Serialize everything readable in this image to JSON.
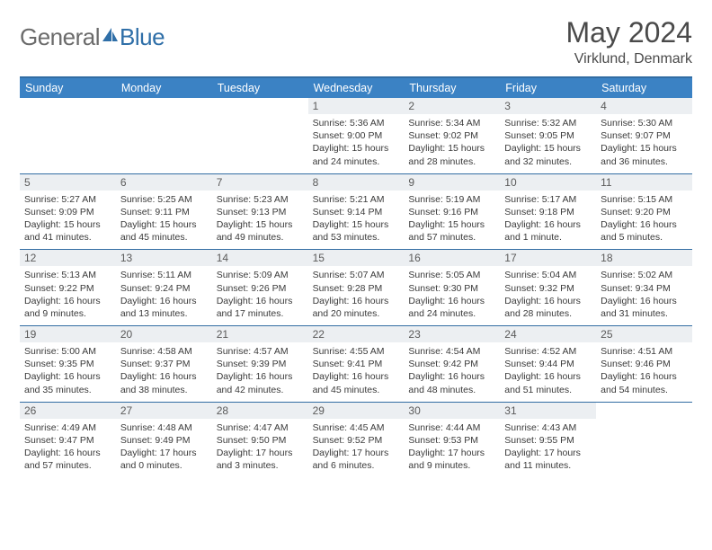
{
  "brand": {
    "part1": "General",
    "part2": "Blue"
  },
  "title": "May 2024",
  "location": "Virklund, Denmark",
  "colors": {
    "header_bar": "#3b82c4",
    "rule": "#326da3",
    "daynum_bg": "#eceff2",
    "text": "#3a3a3a",
    "logo_gray": "#6b6b6b",
    "logo_blue": "#2f6fa8"
  },
  "weekdays": [
    "Sunday",
    "Monday",
    "Tuesday",
    "Wednesday",
    "Thursday",
    "Friday",
    "Saturday"
  ],
  "weeks": [
    {
      "nums": [
        "",
        "",
        "",
        "1",
        "2",
        "3",
        "4"
      ],
      "cells": [
        null,
        null,
        null,
        {
          "sunrise": "Sunrise: 5:36 AM",
          "sunset": "Sunset: 9:00 PM",
          "day": "Daylight: 15 hours and 24 minutes."
        },
        {
          "sunrise": "Sunrise: 5:34 AM",
          "sunset": "Sunset: 9:02 PM",
          "day": "Daylight: 15 hours and 28 minutes."
        },
        {
          "sunrise": "Sunrise: 5:32 AM",
          "sunset": "Sunset: 9:05 PM",
          "day": "Daylight: 15 hours and 32 minutes."
        },
        {
          "sunrise": "Sunrise: 5:30 AM",
          "sunset": "Sunset: 9:07 PM",
          "day": "Daylight: 15 hours and 36 minutes."
        }
      ]
    },
    {
      "nums": [
        "5",
        "6",
        "7",
        "8",
        "9",
        "10",
        "11"
      ],
      "cells": [
        {
          "sunrise": "Sunrise: 5:27 AM",
          "sunset": "Sunset: 9:09 PM",
          "day": "Daylight: 15 hours and 41 minutes."
        },
        {
          "sunrise": "Sunrise: 5:25 AM",
          "sunset": "Sunset: 9:11 PM",
          "day": "Daylight: 15 hours and 45 minutes."
        },
        {
          "sunrise": "Sunrise: 5:23 AM",
          "sunset": "Sunset: 9:13 PM",
          "day": "Daylight: 15 hours and 49 minutes."
        },
        {
          "sunrise": "Sunrise: 5:21 AM",
          "sunset": "Sunset: 9:14 PM",
          "day": "Daylight: 15 hours and 53 minutes."
        },
        {
          "sunrise": "Sunrise: 5:19 AM",
          "sunset": "Sunset: 9:16 PM",
          "day": "Daylight: 15 hours and 57 minutes."
        },
        {
          "sunrise": "Sunrise: 5:17 AM",
          "sunset": "Sunset: 9:18 PM",
          "day": "Daylight: 16 hours and 1 minute."
        },
        {
          "sunrise": "Sunrise: 5:15 AM",
          "sunset": "Sunset: 9:20 PM",
          "day": "Daylight: 16 hours and 5 minutes."
        }
      ]
    },
    {
      "nums": [
        "12",
        "13",
        "14",
        "15",
        "16",
        "17",
        "18"
      ],
      "cells": [
        {
          "sunrise": "Sunrise: 5:13 AM",
          "sunset": "Sunset: 9:22 PM",
          "day": "Daylight: 16 hours and 9 minutes."
        },
        {
          "sunrise": "Sunrise: 5:11 AM",
          "sunset": "Sunset: 9:24 PM",
          "day": "Daylight: 16 hours and 13 minutes."
        },
        {
          "sunrise": "Sunrise: 5:09 AM",
          "sunset": "Sunset: 9:26 PM",
          "day": "Daylight: 16 hours and 17 minutes."
        },
        {
          "sunrise": "Sunrise: 5:07 AM",
          "sunset": "Sunset: 9:28 PM",
          "day": "Daylight: 16 hours and 20 minutes."
        },
        {
          "sunrise": "Sunrise: 5:05 AM",
          "sunset": "Sunset: 9:30 PM",
          "day": "Daylight: 16 hours and 24 minutes."
        },
        {
          "sunrise": "Sunrise: 5:04 AM",
          "sunset": "Sunset: 9:32 PM",
          "day": "Daylight: 16 hours and 28 minutes."
        },
        {
          "sunrise": "Sunrise: 5:02 AM",
          "sunset": "Sunset: 9:34 PM",
          "day": "Daylight: 16 hours and 31 minutes."
        }
      ]
    },
    {
      "nums": [
        "19",
        "20",
        "21",
        "22",
        "23",
        "24",
        "25"
      ],
      "cells": [
        {
          "sunrise": "Sunrise: 5:00 AM",
          "sunset": "Sunset: 9:35 PM",
          "day": "Daylight: 16 hours and 35 minutes."
        },
        {
          "sunrise": "Sunrise: 4:58 AM",
          "sunset": "Sunset: 9:37 PM",
          "day": "Daylight: 16 hours and 38 minutes."
        },
        {
          "sunrise": "Sunrise: 4:57 AM",
          "sunset": "Sunset: 9:39 PM",
          "day": "Daylight: 16 hours and 42 minutes."
        },
        {
          "sunrise": "Sunrise: 4:55 AM",
          "sunset": "Sunset: 9:41 PM",
          "day": "Daylight: 16 hours and 45 minutes."
        },
        {
          "sunrise": "Sunrise: 4:54 AM",
          "sunset": "Sunset: 9:42 PM",
          "day": "Daylight: 16 hours and 48 minutes."
        },
        {
          "sunrise": "Sunrise: 4:52 AM",
          "sunset": "Sunset: 9:44 PM",
          "day": "Daylight: 16 hours and 51 minutes."
        },
        {
          "sunrise": "Sunrise: 4:51 AM",
          "sunset": "Sunset: 9:46 PM",
          "day": "Daylight: 16 hours and 54 minutes."
        }
      ]
    },
    {
      "nums": [
        "26",
        "27",
        "28",
        "29",
        "30",
        "31",
        ""
      ],
      "cells": [
        {
          "sunrise": "Sunrise: 4:49 AM",
          "sunset": "Sunset: 9:47 PM",
          "day": "Daylight: 16 hours and 57 minutes."
        },
        {
          "sunrise": "Sunrise: 4:48 AM",
          "sunset": "Sunset: 9:49 PM",
          "day": "Daylight: 17 hours and 0 minutes."
        },
        {
          "sunrise": "Sunrise: 4:47 AM",
          "sunset": "Sunset: 9:50 PM",
          "day": "Daylight: 17 hours and 3 minutes."
        },
        {
          "sunrise": "Sunrise: 4:45 AM",
          "sunset": "Sunset: 9:52 PM",
          "day": "Daylight: 17 hours and 6 minutes."
        },
        {
          "sunrise": "Sunrise: 4:44 AM",
          "sunset": "Sunset: 9:53 PM",
          "day": "Daylight: 17 hours and 9 minutes."
        },
        {
          "sunrise": "Sunrise: 4:43 AM",
          "sunset": "Sunset: 9:55 PM",
          "day": "Daylight: 17 hours and 11 minutes."
        },
        null
      ]
    }
  ]
}
